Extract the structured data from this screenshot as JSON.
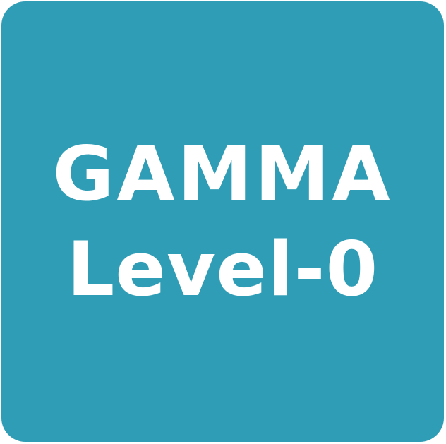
{
  "tile": {
    "background_color": "#2e9db5",
    "text_color": "#ffffff",
    "line_1": "GAMMA",
    "line_2": "Level-0"
  }
}
